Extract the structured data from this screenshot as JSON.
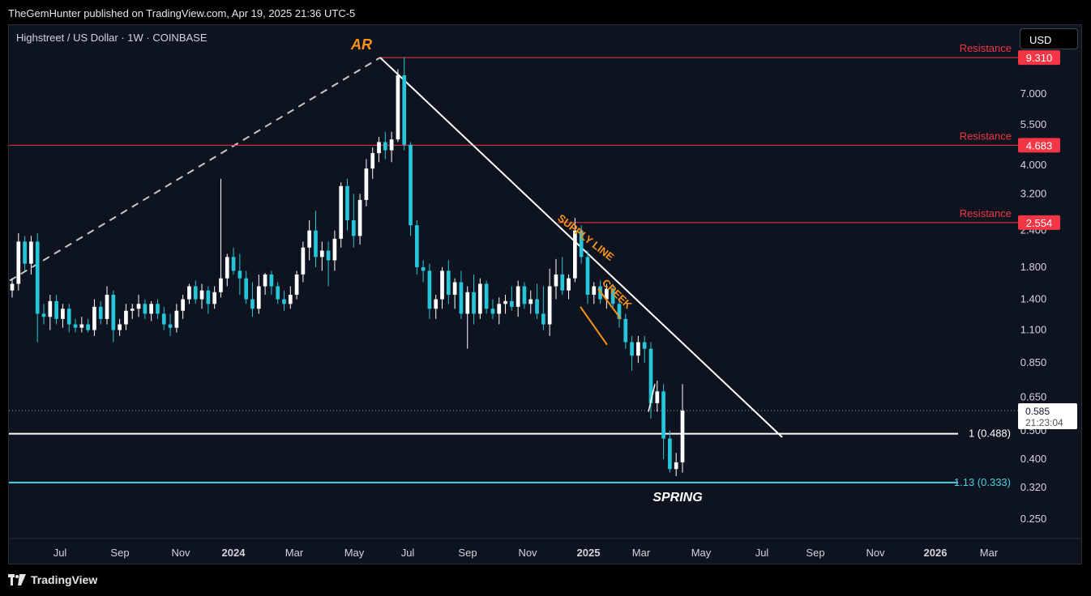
{
  "header": {
    "publish_text": "TheGemHunter published on TradingView.com, Apr 19, 2025 21:36 UTC-5"
  },
  "symbol": {
    "title": "Highstreet / US Dollar · 1W · COINBASE"
  },
  "currency_button": {
    "label": "USD"
  },
  "footer": {
    "brand": "TradingView"
  },
  "colors": {
    "up": "#ffffff",
    "down": "#26c6da",
    "resistance": "#f23645",
    "accent": "#f7931a",
    "cyan_line": "#4dd0e1"
  },
  "chart_data": {
    "type": "candlestick",
    "scale": "log",
    "y_ticks": [
      "7.000",
      "5.500",
      "4.000",
      "3.200",
      "2.400",
      "1.800",
      "1.400",
      "1.100",
      "0.850",
      "0.650",
      "0.500",
      "0.400",
      "0.320",
      "0.250"
    ],
    "x_ticks": [
      "Jul",
      "Sep",
      "Nov",
      "2024",
      "Mar",
      "May",
      "Jul",
      "Sep",
      "Nov",
      "2025",
      "Mar",
      "May",
      "Jul",
      "Sep",
      "Nov",
      "2026",
      "Mar"
    ],
    "bold_x_ticks": [
      "2024",
      "2025",
      "2026"
    ],
    "levels": [
      {
        "label": "Resistance",
        "value": "9.310"
      },
      {
        "label": "Resistance",
        "value": "4.683"
      },
      {
        "label": "Resistance",
        "value": "2.554"
      }
    ],
    "fib_lines": [
      {
        "label": "1 (0.488)",
        "value": 0.488,
        "color": "#ffffff"
      },
      {
        "label": "1.13 (0.333)",
        "value": 0.333,
        "color": "#4dd0e1"
      }
    ],
    "current_price": {
      "value": "0.585",
      "timer": "21:23:04"
    },
    "annotations": [
      "AR",
      "SUPPLY LINE",
      "CREEK",
      "SPRING"
    ],
    "candles": [
      [
        1.5,
        1.65,
        1.42,
        1.58
      ],
      [
        1.58,
        2.35,
        1.5,
        2.2
      ],
      [
        2.2,
        2.3,
        1.75,
        1.85
      ],
      [
        1.85,
        2.3,
        1.7,
        2.2
      ],
      [
        2.2,
        2.35,
        1.0,
        1.25
      ],
      [
        1.25,
        1.35,
        1.15,
        1.22
      ],
      [
        1.22,
        1.45,
        1.1,
        1.38
      ],
      [
        1.38,
        1.45,
        1.15,
        1.2
      ],
      [
        1.2,
        1.35,
        1.12,
        1.3
      ],
      [
        1.3,
        1.35,
        1.08,
        1.15
      ],
      [
        1.15,
        1.2,
        1.08,
        1.12
      ],
      [
        1.12,
        1.22,
        1.08,
        1.15
      ],
      [
        1.15,
        1.2,
        1.08,
        1.1
      ],
      [
        1.1,
        1.4,
        1.05,
        1.32
      ],
      [
        1.32,
        1.38,
        1.15,
        1.2
      ],
      [
        1.2,
        1.55,
        1.15,
        1.45
      ],
      [
        1.45,
        1.5,
        1.0,
        1.1
      ],
      [
        1.1,
        1.2,
        1.05,
        1.15
      ],
      [
        1.15,
        1.35,
        1.1,
        1.28
      ],
      [
        1.28,
        1.35,
        1.2,
        1.3
      ],
      [
        1.3,
        1.45,
        1.22,
        1.35
      ],
      [
        1.35,
        1.4,
        1.2,
        1.25
      ],
      [
        1.25,
        1.38,
        1.18,
        1.35
      ],
      [
        1.35,
        1.4,
        1.2,
        1.25
      ],
      [
        1.25,
        1.32,
        1.1,
        1.15
      ],
      [
        1.15,
        1.25,
        1.05,
        1.12
      ],
      [
        1.12,
        1.35,
        1.08,
        1.28
      ],
      [
        1.28,
        1.45,
        1.2,
        1.4
      ],
      [
        1.4,
        1.58,
        1.35,
        1.55
      ],
      [
        1.55,
        1.62,
        1.35,
        1.4
      ],
      [
        1.4,
        1.58,
        1.3,
        1.5
      ],
      [
        1.5,
        1.55,
        1.25,
        1.35
      ],
      [
        1.35,
        1.55,
        1.3,
        1.48
      ],
      [
        1.48,
        3.6,
        1.42,
        1.65
      ],
      [
        1.65,
        2.0,
        1.55,
        1.95
      ],
      [
        1.95,
        2.1,
        1.7,
        1.75
      ],
      [
        1.75,
        2.0,
        1.45,
        1.65
      ],
      [
        1.65,
        1.75,
        1.35,
        1.4
      ],
      [
        1.4,
        1.6,
        1.22,
        1.3
      ],
      [
        1.3,
        1.7,
        1.25,
        1.55
      ],
      [
        1.55,
        1.72,
        1.45,
        1.7
      ],
      [
        1.7,
        1.75,
        1.45,
        1.55
      ],
      [
        1.55,
        1.6,
        1.35,
        1.4
      ],
      [
        1.4,
        1.5,
        1.28,
        1.35
      ],
      [
        1.35,
        1.55,
        1.3,
        1.45
      ],
      [
        1.45,
        1.75,
        1.4,
        1.7
      ],
      [
        1.7,
        2.2,
        1.6,
        2.1
      ],
      [
        2.1,
        2.6,
        1.9,
        2.4
      ],
      [
        2.4,
        2.8,
        1.8,
        1.95
      ],
      [
        1.95,
        2.2,
        1.75,
        2.05
      ],
      [
        2.05,
        2.2,
        1.55,
        1.9
      ],
      [
        1.9,
        2.4,
        1.75,
        2.25
      ],
      [
        2.25,
        3.5,
        2.1,
        3.4
      ],
      [
        3.4,
        3.6,
        2.4,
        2.6
      ],
      [
        2.6,
        3.2,
        2.1,
        2.3
      ],
      [
        2.3,
        3.2,
        2.15,
        3.05
      ],
      [
        3.05,
        4.2,
        2.9,
        3.9
      ],
      [
        3.9,
        4.6,
        3.6,
        4.4
      ],
      [
        4.4,
        5.0,
        4.1,
        4.8
      ],
      [
        4.8,
        5.2,
        4.2,
        4.5
      ],
      [
        4.5,
        5.2,
        4.1,
        4.9
      ],
      [
        4.9,
        8.5,
        4.8,
        8.1
      ],
      [
        8.1,
        9.31,
        4.5,
        4.7
      ],
      [
        4.7,
        4.8,
        2.3,
        2.5
      ],
      [
        2.5,
        2.6,
        1.7,
        1.8
      ],
      [
        1.8,
        1.9,
        1.6,
        1.75
      ],
      [
        1.75,
        1.85,
        1.2,
        1.3
      ],
      [
        1.3,
        1.45,
        1.2,
        1.4
      ],
      [
        1.4,
        1.8,
        1.3,
        1.75
      ],
      [
        1.75,
        1.9,
        1.35,
        1.45
      ],
      [
        1.45,
        1.65,
        1.3,
        1.6
      ],
      [
        1.6,
        1.75,
        1.2,
        1.25
      ],
      [
        1.25,
        1.55,
        0.95,
        1.48
      ],
      [
        1.48,
        1.7,
        1.15,
        1.25
      ],
      [
        1.25,
        1.65,
        1.2,
        1.58
      ],
      [
        1.58,
        1.62,
        1.25,
        1.3
      ],
      [
        1.3,
        1.4,
        1.2,
        1.25
      ],
      [
        1.25,
        1.42,
        1.15,
        1.35
      ],
      [
        1.35,
        1.45,
        1.25,
        1.38
      ],
      [
        1.38,
        1.55,
        1.28,
        1.32
      ],
      [
        1.32,
        1.62,
        1.22,
        1.55
      ],
      [
        1.55,
        1.6,
        1.3,
        1.35
      ],
      [
        1.35,
        1.5,
        1.25,
        1.4
      ],
      [
        1.4,
        1.58,
        1.2,
        1.25
      ],
      [
        1.25,
        1.55,
        1.1,
        1.15
      ],
      [
        1.15,
        1.78,
        1.05,
        1.55
      ],
      [
        1.55,
        1.92,
        1.4,
        1.7
      ],
      [
        1.7,
        1.95,
        1.45,
        1.5
      ],
      [
        1.5,
        1.7,
        1.4,
        1.65
      ],
      [
        1.65,
        2.65,
        1.6,
        2.4
      ],
      [
        2.4,
        2.5,
        1.85,
        1.95
      ],
      [
        1.95,
        2.05,
        1.35,
        1.45
      ],
      [
        1.45,
        1.6,
        1.35,
        1.55
      ],
      [
        1.55,
        1.62,
        1.35,
        1.4
      ],
      [
        1.4,
        1.58,
        1.3,
        1.52
      ],
      [
        1.52,
        1.58,
        1.3,
        1.35
      ],
      [
        1.35,
        1.4,
        1.12,
        1.2
      ],
      [
        1.2,
        1.25,
        0.95,
        1.0
      ],
      [
        1.0,
        1.05,
        0.8,
        0.9
      ],
      [
        0.9,
        1.05,
        0.85,
        1.0
      ],
      [
        1.0,
        1.05,
        0.85,
        0.95
      ],
      [
        0.95,
        1.0,
        0.55,
        0.62
      ],
      [
        0.62,
        0.74,
        0.58,
        0.68
      ],
      [
        0.68,
        0.72,
        0.4,
        0.47
      ],
      [
        0.47,
        0.5,
        0.36,
        0.37
      ],
      [
        0.37,
        0.42,
        0.35,
        0.39
      ],
      [
        0.39,
        0.72,
        0.36,
        0.585
      ]
    ]
  }
}
